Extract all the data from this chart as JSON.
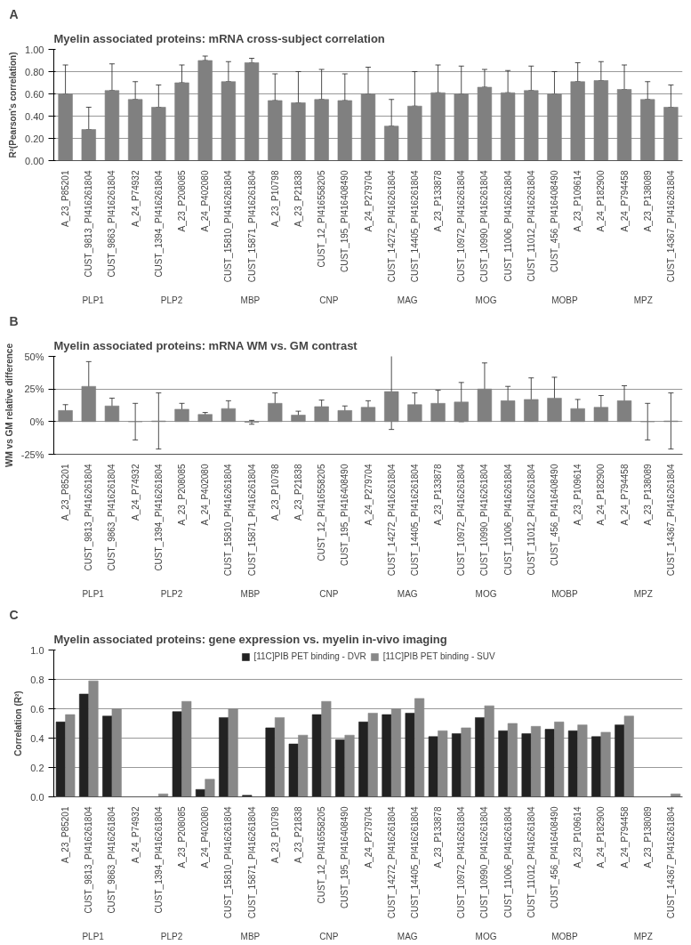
{
  "chart_data": [
    {
      "type": "bar",
      "title": "Myelin associated proteins: mRNA cross-subject correlation",
      "ylabel": "R²(Pearson's correlation)",
      "categories": [
        "A_23_P85201",
        "CUST_9813_PI416261804",
        "CUST_9863_PI416261804",
        "A_24_P74932",
        "CUST_1394_PI416261804",
        "A_23_P208085",
        "A_24_P402080",
        "CUST_15810_PI416261804",
        "CUST_15871_PI416261804",
        "A_23_P10798",
        "A_23_P21838",
        "CUST_12_PI416558205",
        "CUST_195_PI416408490",
        "A_24_P279704",
        "CUST_14272_PI416261804",
        "CUST_14405_PI416261804",
        "A_23_P133878",
        "CUST_10972_PI416261804",
        "CUST_10990_PI416261804",
        "CUST_11006_PI416261804",
        "CUST_11012_PI416261804",
        "CUST_456_PI416408490",
        "A_23_P109614",
        "A_24_P182900",
        "A_24_P794458",
        "A_23_P138089",
        "CUST_14367_PI416261804"
      ],
      "values": [
        0.6,
        0.28,
        0.63,
        0.55,
        0.48,
        0.7,
        0.9,
        0.71,
        0.88,
        0.54,
        0.52,
        0.55,
        0.54,
        0.6,
        0.31,
        0.49,
        0.61,
        0.6,
        0.66,
        0.61,
        0.63,
        0.6,
        0.71,
        0.72,
        0.64,
        0.55,
        0.48
      ],
      "errors": [
        [
          0.6,
          0.86
        ],
        [
          0.28,
          0.48
        ],
        [
          0.63,
          0.87
        ],
        [
          0.55,
          0.71
        ],
        [
          0.48,
          0.68
        ],
        [
          0.7,
          0.86
        ],
        [
          0.9,
          0.94
        ],
        [
          0.71,
          0.89
        ],
        [
          0.88,
          0.92
        ],
        [
          0.54,
          0.78
        ],
        [
          0.52,
          0.8
        ],
        [
          0.55,
          0.82
        ],
        [
          0.54,
          0.78
        ],
        [
          0.6,
          0.84
        ],
        [
          0.31,
          0.55
        ],
        [
          0.49,
          0.8
        ],
        [
          0.61,
          0.86
        ],
        [
          0.6,
          0.85
        ],
        [
          0.66,
          0.82
        ],
        [
          0.61,
          0.81
        ],
        [
          0.63,
          0.85
        ],
        [
          0.6,
          0.8
        ],
        [
          0.71,
          0.88
        ],
        [
          0.72,
          0.89
        ],
        [
          0.64,
          0.86
        ],
        [
          0.55,
          0.71
        ],
        [
          0.48,
          0.68
        ]
      ],
      "color": "#808080",
      "ylim": [
        0,
        1
      ],
      "yticks": [
        {
          "value": 0,
          "label": "0.00"
        },
        {
          "value": 0.2,
          "label": "0.20"
        },
        {
          "value": 0.4,
          "label": "0.40"
        },
        {
          "value": 0.6,
          "label": "0.60"
        },
        {
          "value": 0.8,
          "label": "0.80"
        },
        {
          "value": 1,
          "label": "1.00"
        }
      ],
      "grid": "y",
      "annotations": [
        "A",
        "PLP1",
        "PLP2",
        "MBP",
        "CNP",
        "MAG",
        "MOG",
        "MOBP",
        "MPZ"
      ]
    },
    {
      "type": "bar",
      "title": "Myelin associated proteins: mRNA WM vs. GM contrast",
      "ylabel": "WM vs GM relative difference",
      "categories": [
        "A_23_P85201",
        "CUST_9813_PI416261804",
        "CUST_9863_PI416261804",
        "A_24_P74932",
        "CUST_1394_PI416261804",
        "A_23_P208085",
        "A_24_P402080",
        "CUST_15810_PI416261804",
        "CUST_15871_PI416261804",
        "A_23_P10798",
        "A_23_P21838",
        "CUST_12_PI416558205",
        "CUST_195_PI416408490",
        "A_24_P279704",
        "CUST_14272_PI416261804",
        "CUST_14405_PI416261804",
        "A_23_P133878",
        "CUST_10972_PI416261804",
        "CUST_10990_PI416261804",
        "CUST_11006_PI416261804",
        "CUST_11012_PI416261804",
        "CUST_456_PI416408490",
        "A_23_P109614",
        "A_24_P182900",
        "A_24_P794458",
        "A_23_P138089",
        "CUST_14367_PI416261804"
      ],
      "values": [
        8.5,
        27,
        12,
        0,
        0.5,
        9.5,
        5.5,
        10,
        -0.5,
        14,
        5,
        11.5,
        8.5,
        11,
        23,
        13,
        14,
        15,
        25,
        16,
        17,
        18,
        10,
        11,
        16,
        0,
        0.5
      ],
      "errors": [
        4.5,
        19,
        6,
        14,
        21.5,
        4.5,
        1.5,
        6,
        1.5,
        8,
        3,
        5,
        3.5,
        5,
        29,
        9,
        10,
        15,
        20,
        11,
        16.5,
        16,
        7,
        9,
        11.5,
        14,
        21.5
      ],
      "color": "#808080",
      "ylim": [
        -25,
        50
      ],
      "yticks": [
        {
          "value": -25,
          "label": "-25%"
        },
        {
          "value": 0,
          "label": "0%"
        },
        {
          "value": 25,
          "label": "25%"
        },
        {
          "value": 50,
          "label": "50%"
        }
      ],
      "grid": "y",
      "annotations": [
        "B",
        "PLP1",
        "PLP2",
        "MBP",
        "CNP",
        "MAG",
        "MOG",
        "MOBP",
        "MPZ"
      ]
    },
    {
      "type": "bar",
      "title": "Myelin associated proteins: gene expression vs. myelin in-vivo imaging",
      "ylabel": "Correlation (R²)",
      "categories": [
        "A_23_P85201",
        "CUST_9813_PI416261804",
        "CUST_9863_PI416261804",
        "A_24_P74932",
        "CUST_1394_PI416261804",
        "A_23_P208085",
        "A_24_P402080",
        "CUST_15810_PI416261804",
        "CUST_15871_PI416261804",
        "A_23_P10798",
        "A_23_P21838",
        "CUST_12_PI416558205",
        "CUST_195_PI416408490",
        "A_24_P279704",
        "CUST_14272_PI416261804",
        "CUST_14405_PI416261804",
        "A_23_P133878",
        "CUST_10972_PI416261804",
        "CUST_10990_PI416261804",
        "CUST_11006_PI416261804",
        "CUST_11012_PI416261804",
        "CUST_456_PI416408490",
        "A_23_P109614",
        "A_24_P182900",
        "A_24_P794458",
        "A_23_P138089",
        "CUST_14367_PI416261804"
      ],
      "series": [
        {
          "name": "[11C]PIB PET binding - DVR",
          "color": "#222222",
          "values": [
            0.51,
            0.7,
            0.55,
            0.0,
            0.0,
            0.58,
            0.05,
            0.54,
            0.01,
            0.47,
            0.36,
            0.56,
            0.39,
            0.51,
            0.56,
            0.57,
            0.41,
            0.43,
            0.54,
            0.45,
            0.43,
            0.46,
            0.45,
            0.41,
            0.49,
            0.0,
            0.0
          ]
        },
        {
          "name": "[11C]PIB PET binding - SUV",
          "color": "#888888",
          "values": [
            0.56,
            0.79,
            0.6,
            0.0,
            0.02,
            0.65,
            0.12,
            0.6,
            0.0,
            0.54,
            0.42,
            0.65,
            0.42,
            0.57,
            0.6,
            0.67,
            0.45,
            0.47,
            0.62,
            0.5,
            0.48,
            0.51,
            0.49,
            0.44,
            0.55,
            0.0,
            0.02
          ]
        }
      ],
      "ylim": [
        0,
        1
      ],
      "yticks": [
        {
          "value": 0,
          "label": "0.0"
        },
        {
          "value": 0.2,
          "label": "0.2"
        },
        {
          "value": 0.4,
          "label": "0.4"
        },
        {
          "value": 0.6,
          "label": "0.6"
        },
        {
          "value": 0.8,
          "label": "0.8"
        },
        {
          "value": 1,
          "label": "1.0"
        }
      ],
      "grid": "y",
      "legend": "top",
      "annotations": [
        "C",
        "PLP1",
        "PLP2",
        "MBP",
        "CNP",
        "MAG",
        "MOG",
        "MOBP",
        "MPZ"
      ]
    }
  ]
}
